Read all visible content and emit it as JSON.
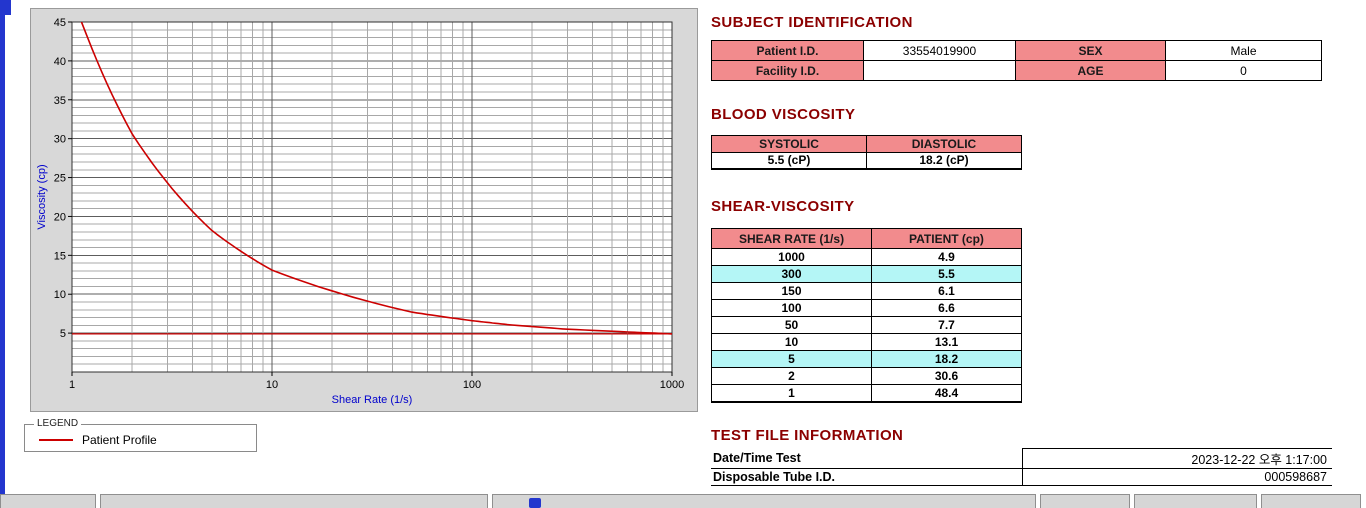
{
  "colors": {
    "section_header_text": "#8B0000",
    "table_header_bg": "#F28B8D",
    "highlight_row_bg": "#B4F6F6",
    "curve_red": "#CC0000",
    "axis_label_blue": "#0000CC",
    "window_accent_blue": "#2336CE"
  },
  "chart_data": {
    "type": "line",
    "title": "",
    "xlabel": "Shear Rate (1/s)",
    "ylabel": "Viscosity (cp)",
    "x_scale": "log",
    "xlim": [
      1,
      1000
    ],
    "ylim": [
      0,
      45
    ],
    "x_ticks": [
      1,
      10,
      100,
      1000
    ],
    "y_ticks": [
      5,
      10,
      15,
      20,
      25,
      30,
      35,
      40,
      45
    ],
    "grid": "on",
    "series": [
      {
        "name": "Patient Profile",
        "color": "#CC0000",
        "x": [
          1,
          2,
          5,
          10,
          50,
          100,
          150,
          300,
          1000
        ],
        "y": [
          48.4,
          30.6,
          18.2,
          13.1,
          7.7,
          6.6,
          6.1,
          5.5,
          4.9
        ]
      }
    ],
    "baseline": {
      "value": 4.9,
      "color": "#CC0000"
    },
    "legend": {
      "box_label": "LEGEND",
      "position": "below-left",
      "entries": [
        {
          "label": "Patient Profile",
          "color": "#CC0000"
        }
      ]
    }
  },
  "subject": {
    "title": "SUBJECT IDENTIFICATION",
    "rows": [
      {
        "label1": "Patient I.D.",
        "value1": "33554019900",
        "label2": "SEX",
        "value2": "Male"
      },
      {
        "label1": "Facility I.D.",
        "value1": "",
        "label2": "AGE",
        "value2": "0"
      }
    ]
  },
  "blood_viscosity": {
    "title": "BLOOD VISCOSITY",
    "headers": [
      "SYSTOLIC",
      "DIASTOLIC"
    ],
    "values": [
      "5.5 (cP)",
      "18.2 (cP)"
    ]
  },
  "shear_viscosity": {
    "title": "SHEAR-VISCOSITY",
    "headers": [
      "SHEAR RATE (1/s)",
      "PATIENT (cp)"
    ],
    "rows": [
      {
        "rate": "1000",
        "value": "4.9",
        "highlight": false
      },
      {
        "rate": "300",
        "value": "5.5",
        "highlight": true
      },
      {
        "rate": "150",
        "value": "6.1",
        "highlight": false
      },
      {
        "rate": "100",
        "value": "6.6",
        "highlight": false
      },
      {
        "rate": "50",
        "value": "7.7",
        "highlight": false
      },
      {
        "rate": "10",
        "value": "13.1",
        "highlight": false
      },
      {
        "rate": "5",
        "value": "18.2",
        "highlight": true
      },
      {
        "rate": "2",
        "value": "30.6",
        "highlight": false
      },
      {
        "rate": "1",
        "value": "48.4",
        "highlight": false
      }
    ]
  },
  "test_file": {
    "title": "TEST FILE INFORMATION",
    "rows": [
      {
        "label": "Date/Time Test",
        "value": "2023-12-22  오후 1:17:00"
      },
      {
        "label": "Disposable Tube I.D.",
        "value": "000598687"
      }
    ]
  }
}
